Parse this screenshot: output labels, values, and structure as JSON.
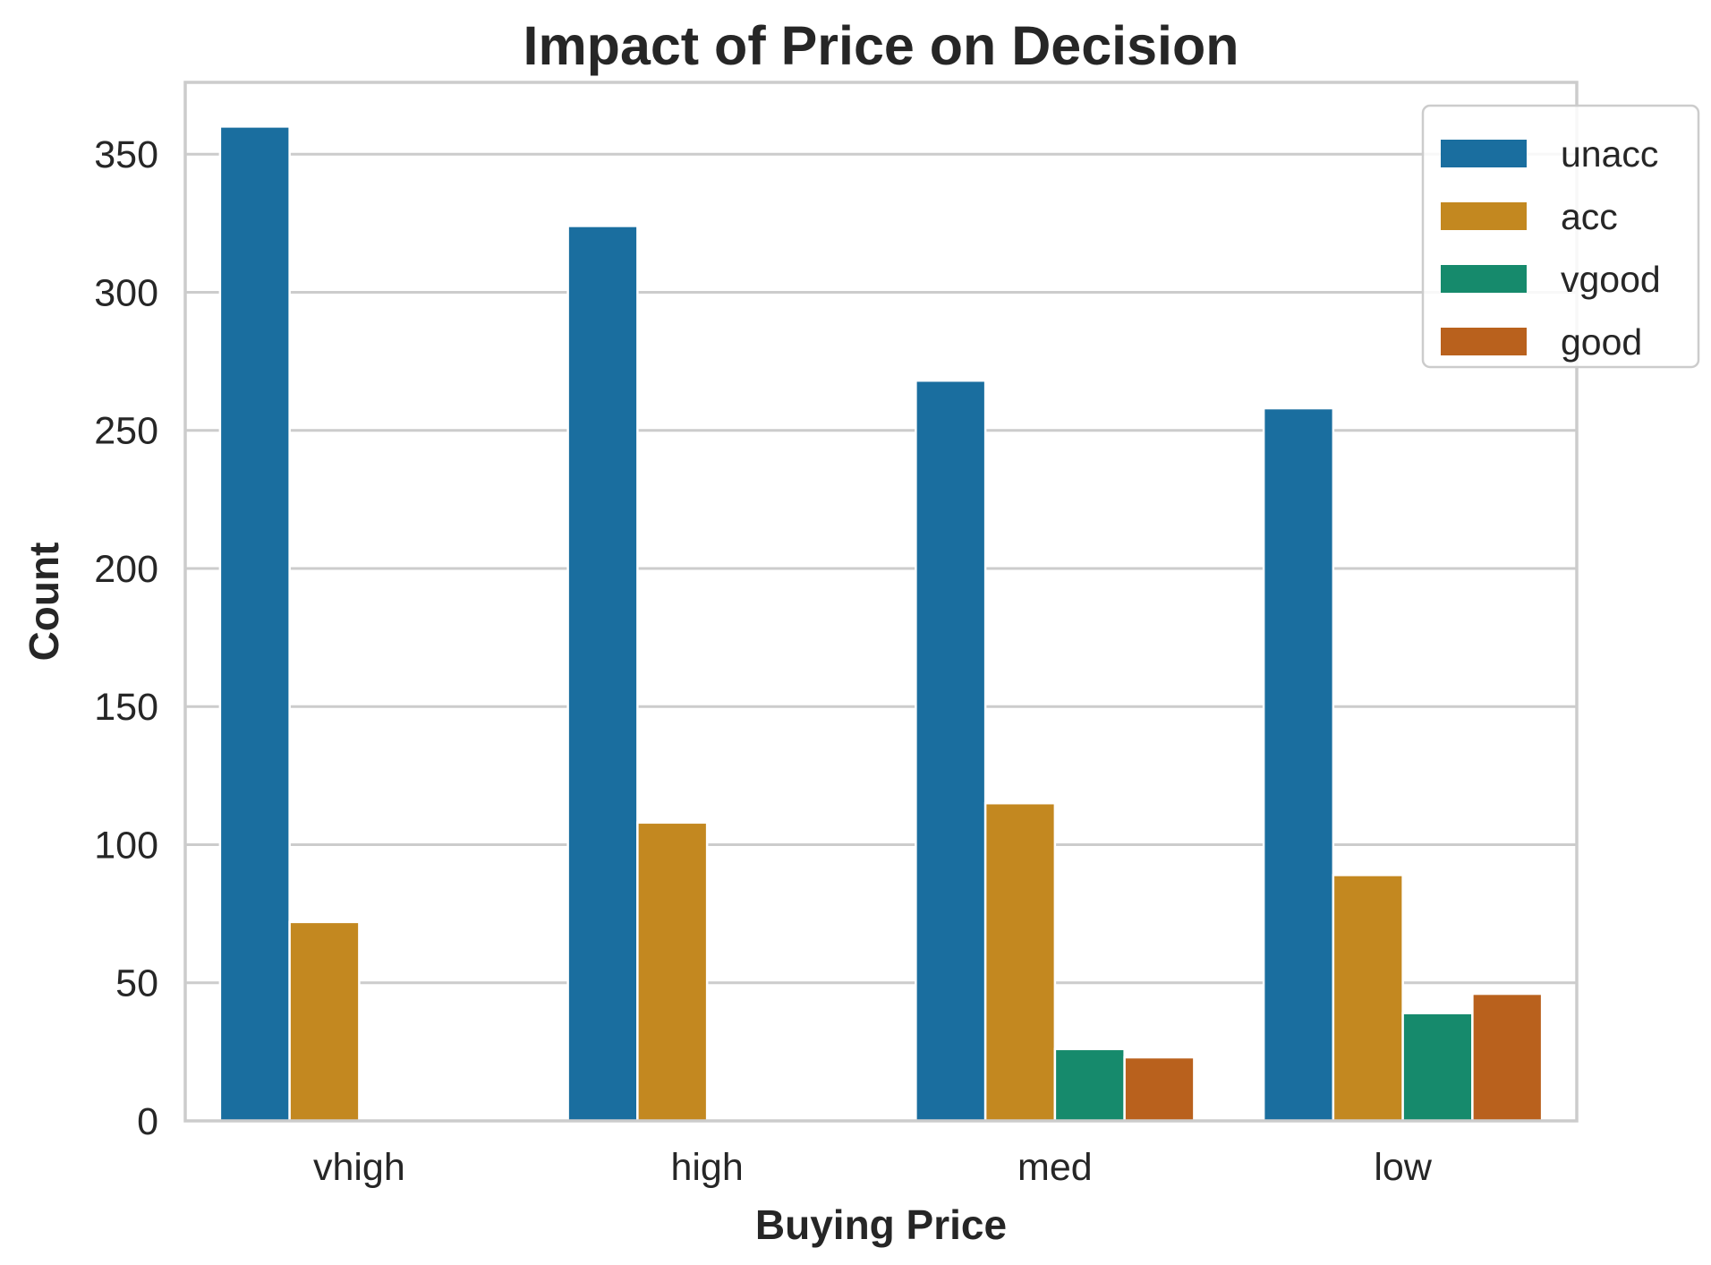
{
  "chart_data": {
    "type": "bar",
    "title": "Impact of Price on Decision",
    "xlabel": "Buying Price",
    "ylabel": "Count",
    "categories": [
      "vhigh",
      "high",
      "med",
      "low"
    ],
    "series": [
      {
        "name": "unacc",
        "values": [
          360,
          324,
          268,
          258
        ],
        "color": "#1a6e9f"
      },
      {
        "name": "acc",
        "values": [
          72,
          108,
          115,
          89
        ],
        "color": "#c38820"
      },
      {
        "name": "vgood",
        "values": [
          0,
          0,
          26,
          39
        ],
        "color": "#168a6c"
      },
      {
        "name": "good",
        "values": [
          0,
          0,
          23,
          46
        ],
        "color": "#b9611d"
      }
    ],
    "ylim": [
      0,
      376
    ],
    "yticks": [
      "0",
      "50",
      "100",
      "150",
      "200",
      "250",
      "300",
      "350"
    ],
    "grid": "horizontal",
    "legend": "upper right, extending slightly outside the plot area"
  }
}
